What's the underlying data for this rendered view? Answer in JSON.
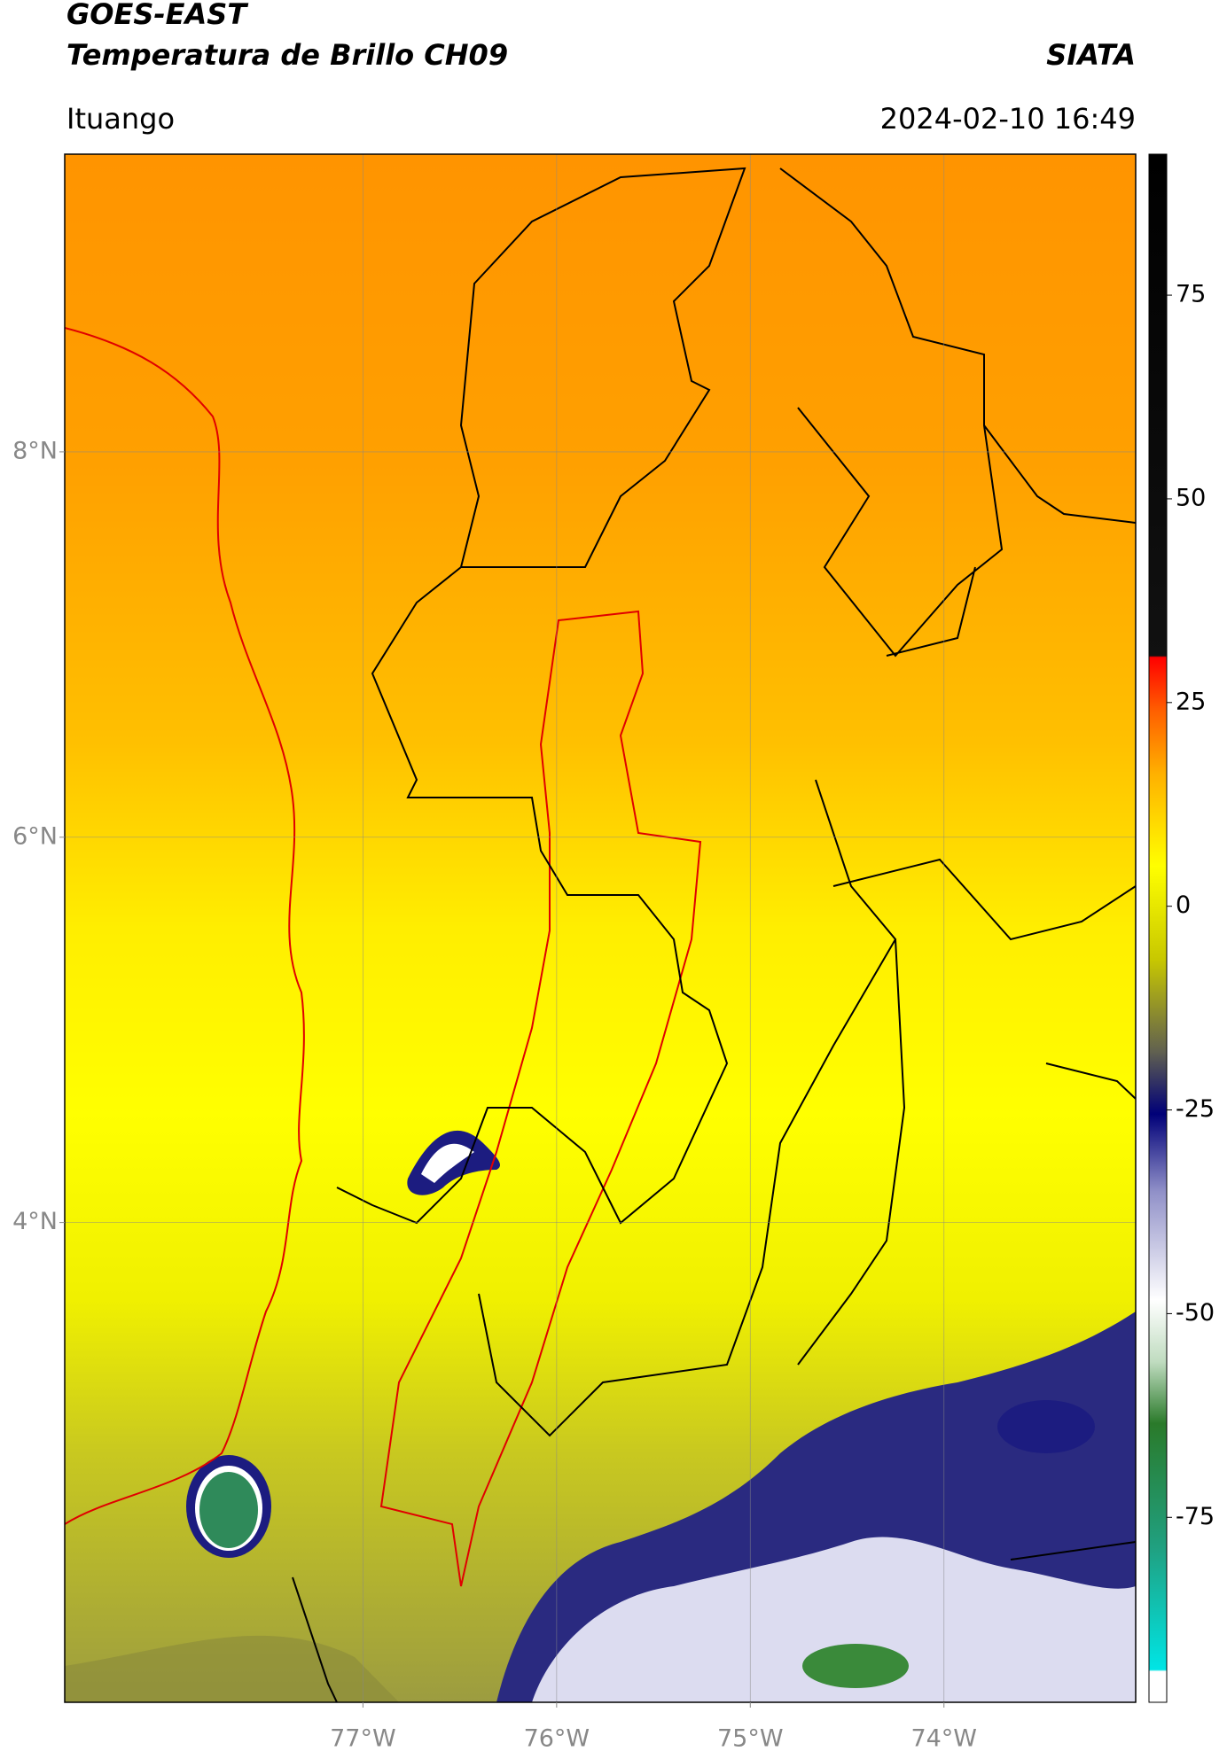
{
  "header": {
    "title": "GOES-EAST",
    "subtitle": "Temperatura de Brillo CH09",
    "source": "SIATA",
    "location": "Ituango",
    "datetime": "2024-02-10 16:49"
  },
  "map": {
    "xlim": [
      -78.54,
      -73.01
    ],
    "ylim": [
      1.51,
      9.545
    ],
    "xticks": [
      {
        "value": -77,
        "label": "77°W"
      },
      {
        "value": -76,
        "label": "76°W"
      },
      {
        "value": -75,
        "label": "75°W"
      },
      {
        "value": -74,
        "label": "74°W"
      }
    ],
    "yticks": [
      {
        "value": 8,
        "label": "8°N"
      },
      {
        "value": 6,
        "label": "6°N"
      },
      {
        "value": 4,
        "label": "4°N"
      }
    ],
    "grid": true
  },
  "colorbar": {
    "lim": [
      -97.7,
      92.3
    ],
    "ticks": [
      75,
      50,
      25,
      0,
      -25,
      -50,
      -75
    ]
  }
}
